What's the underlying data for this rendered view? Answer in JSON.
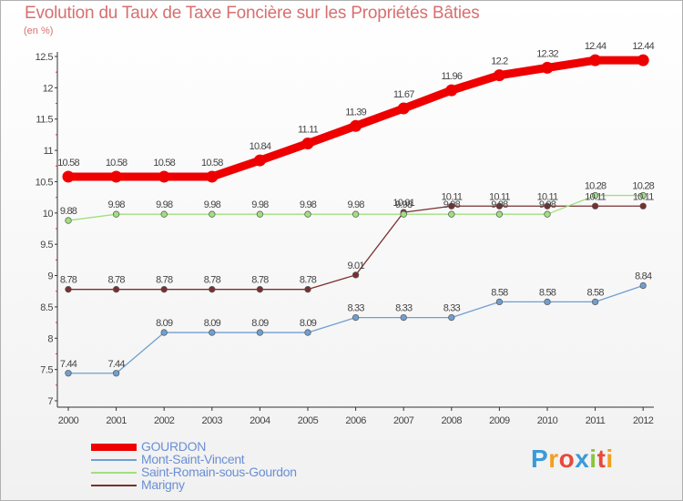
{
  "header": {
    "title": "Evolution du Taux de Taxe Foncière sur les Propriétés Bâties",
    "unit": "(en %)"
  },
  "logo": {
    "letters": [
      "P",
      "r",
      "o",
      "x",
      "i",
      "t",
      "i"
    ],
    "colors": [
      "#3a9ad9",
      "#f0a020",
      "#e84a3a",
      "#3a9ad9",
      "#8cc43c",
      "#e84a3a",
      "#f0a020"
    ]
  },
  "chart_data": {
    "type": "line",
    "title": "Evolution du Taux de Taxe Foncière sur les Propriétés Bâties",
    "ylabel": "(en %)",
    "xlabel": "",
    "x": [
      "2000",
      "2001",
      "2002",
      "2003",
      "2004",
      "2005",
      "2006",
      "2007",
      "2008",
      "2009",
      "2010",
      "2011",
      "2012"
    ],
    "ylim": [
      7,
      12.5
    ],
    "yticks": [
      "7",
      "7.5",
      "8",
      "8.5",
      "9",
      "9.5",
      "10",
      "10.5",
      "11",
      "11.5",
      "12",
      "12.5"
    ],
    "grid": false,
    "legend": "bottom-left",
    "series": [
      {
        "name": "GOURDON",
        "color": "#ee0000",
        "values": [
          10.58,
          10.58,
          10.58,
          10.58,
          10.84,
          11.11,
          11.39,
          11.67,
          11.96,
          12.2,
          12.32,
          12.44,
          12.44
        ],
        "labels": [
          "10.58",
          "10.58",
          "10.58",
          "10.58",
          "10.84",
          "11.11",
          "11.39",
          "11.67",
          "11.96",
          "12.2",
          "12.32",
          "12.44",
          "12.44"
        ]
      },
      {
        "name": "Mont-Saint-Vincent",
        "color": "#6f9fd0",
        "values": [
          7.44,
          7.44,
          8.09,
          8.09,
          8.09,
          8.09,
          8.33,
          8.33,
          8.33,
          8.58,
          8.58,
          8.58,
          8.84
        ],
        "labels": [
          "7.44",
          "7.44",
          "8.09",
          "8.09",
          "8.09",
          "8.09",
          "8.33",
          "8.33",
          "8.33",
          "8.58",
          "8.58",
          "8.58",
          "8.84"
        ]
      },
      {
        "name": "Saint-Romain-sous-Gourdon",
        "color": "#9fe07f",
        "values": [
          9.88,
          9.98,
          9.98,
          9.98,
          9.98,
          9.98,
          9.98,
          9.98,
          9.98,
          9.98,
          9.98,
          10.28,
          10.28
        ],
        "labels": [
          "9.88",
          "9.98",
          "9.98",
          "9.98",
          "9.98",
          "9.98",
          "9.98",
          "9.98",
          "9.98",
          "9.98",
          "9.98",
          "10.28",
          "10.28"
        ]
      },
      {
        "name": "Marigny",
        "color": "#7a3030",
        "values": [
          8.78,
          8.78,
          8.78,
          8.78,
          8.78,
          8.78,
          9.01,
          10.01,
          10.11,
          10.11,
          10.11,
          10.11,
          10.11
        ],
        "labels": [
          "8.78",
          "8.78",
          "8.78",
          "8.78",
          "8.78",
          "8.78",
          "9.01",
          "10.01",
          "10.11",
          "10.11",
          "10.11",
          "10.11",
          "10.11"
        ]
      }
    ]
  }
}
